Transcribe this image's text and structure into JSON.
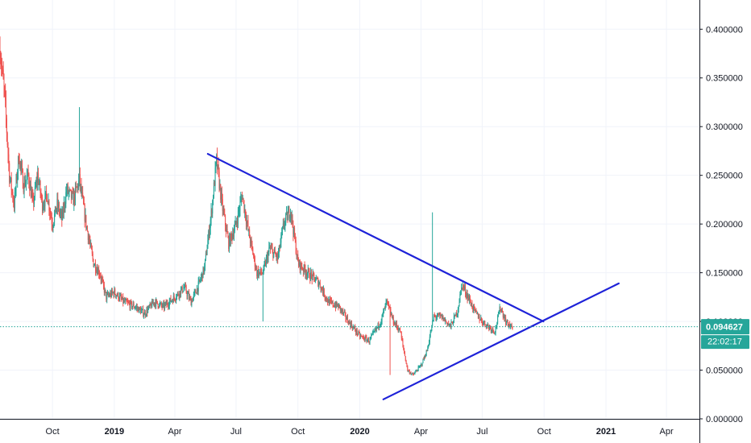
{
  "chart_data": {
    "type": "candlestick",
    "title": "",
    "xlabel": "",
    "ylabel": "",
    "x_range": [
      "2018-07-15",
      "2021-05-20"
    ],
    "ylim": [
      0.0,
      0.43
    ],
    "grid": true,
    "x_tick_labels": [
      {
        "date": "2018-10-01",
        "label": "Oct"
      },
      {
        "date": "2019-01-01",
        "label": "2019"
      },
      {
        "date": "2019-04-01",
        "label": "Apr"
      },
      {
        "date": "2019-07-01",
        "label": "Jul"
      },
      {
        "date": "2019-10-01",
        "label": "Oct"
      },
      {
        "date": "2020-01-01",
        "label": "2020"
      },
      {
        "date": "2020-04-01",
        "label": "Apr"
      },
      {
        "date": "2020-07-01",
        "label": "Jul"
      },
      {
        "date": "2020-10-01",
        "label": "Oct"
      },
      {
        "date": "2021-01-01",
        "label": "2021"
      },
      {
        "date": "2021-04-01",
        "label": "Apr"
      }
    ],
    "y_tick_labels": [
      {
        "value": 0.0,
        "label": "0.000000"
      },
      {
        "value": 0.05,
        "label": "0.050000"
      },
      {
        "value": 0.1,
        "label": "0.100000"
      },
      {
        "value": 0.15,
        "label": "0.150000"
      },
      {
        "value": 0.2,
        "label": "0.200000"
      },
      {
        "value": 0.25,
        "label": "0.250000"
      },
      {
        "value": 0.3,
        "label": "0.300000"
      },
      {
        "value": 0.35,
        "label": "0.350000"
      },
      {
        "value": 0.4,
        "label": "0.400000"
      }
    ],
    "price_path": [
      [
        "2018-07-15",
        0.38
      ],
      [
        "2018-07-22",
        0.33
      ],
      [
        "2018-07-29",
        0.25
      ],
      [
        "2018-08-05",
        0.22
      ],
      [
        "2018-08-12",
        0.27
      ],
      [
        "2018-08-19",
        0.24
      ],
      [
        "2018-08-26",
        0.25
      ],
      [
        "2018-09-02",
        0.22
      ],
      [
        "2018-09-09",
        0.25
      ],
      [
        "2018-09-16",
        0.22
      ],
      [
        "2018-09-23",
        0.23
      ],
      [
        "2018-10-01",
        0.2
      ],
      [
        "2018-10-08",
        0.22
      ],
      [
        "2018-10-15",
        0.205
      ],
      [
        "2018-10-22",
        0.235
      ],
      [
        "2018-11-01",
        0.225
      ],
      [
        "2018-11-10",
        0.245
      ],
      [
        "2018-11-20",
        0.2
      ],
      [
        "2018-12-01",
        0.16
      ],
      [
        "2018-12-10",
        0.15
      ],
      [
        "2018-12-20",
        0.125
      ],
      [
        "2019-01-01",
        0.13
      ],
      [
        "2019-01-15",
        0.12
      ],
      [
        "2019-02-01",
        0.115
      ],
      [
        "2019-02-15",
        0.108
      ],
      [
        "2019-03-01",
        0.12
      ],
      [
        "2019-03-15",
        0.115
      ],
      [
        "2019-04-01",
        0.125
      ],
      [
        "2019-04-15",
        0.135
      ],
      [
        "2019-04-25",
        0.12
      ],
      [
        "2019-05-05",
        0.135
      ],
      [
        "2019-05-15",
        0.155
      ],
      [
        "2019-05-25",
        0.21
      ],
      [
        "2019-06-02",
        0.265
      ],
      [
        "2019-06-10",
        0.22
      ],
      [
        "2019-06-20",
        0.18
      ],
      [
        "2019-07-01",
        0.2
      ],
      [
        "2019-07-10",
        0.23
      ],
      [
        "2019-07-20",
        0.19
      ],
      [
        "2019-08-01",
        0.15
      ],
      [
        "2019-08-10",
        0.15
      ],
      [
        "2019-08-20",
        0.175
      ],
      [
        "2019-09-01",
        0.165
      ],
      [
        "2019-09-10",
        0.2
      ],
      [
        "2019-09-20",
        0.215
      ],
      [
        "2019-10-01",
        0.16
      ],
      [
        "2019-10-15",
        0.15
      ],
      [
        "2019-11-01",
        0.14
      ],
      [
        "2019-11-15",
        0.12
      ],
      [
        "2019-12-01",
        0.115
      ],
      [
        "2019-12-15",
        0.1
      ],
      [
        "2020-01-01",
        0.085
      ],
      [
        "2020-01-15",
        0.08
      ],
      [
        "2020-02-01",
        0.1
      ],
      [
        "2020-02-10",
        0.12
      ],
      [
        "2020-02-20",
        0.1
      ],
      [
        "2020-03-01",
        0.09
      ],
      [
        "2020-03-12",
        0.05
      ],
      [
        "2020-03-20",
        0.045
      ],
      [
        "2020-04-01",
        0.055
      ],
      [
        "2020-04-10",
        0.07
      ],
      [
        "2020-04-20",
        0.105
      ],
      [
        "2020-05-01",
        0.105
      ],
      [
        "2020-05-15",
        0.095
      ],
      [
        "2020-05-25",
        0.11
      ],
      [
        "2020-06-01",
        0.138
      ],
      [
        "2020-06-10",
        0.125
      ],
      [
        "2020-06-20",
        0.11
      ],
      [
        "2020-07-01",
        0.1
      ],
      [
        "2020-07-10",
        0.095
      ],
      [
        "2020-07-20",
        0.09
      ],
      [
        "2020-07-28",
        0.115
      ],
      [
        "2020-08-05",
        0.1
      ],
      [
        "2020-08-15",
        0.093
      ]
    ],
    "spikes": [
      {
        "date": "2018-11-10",
        "high": 0.32
      },
      {
        "date": "2020-02-15",
        "low": 0.045
      },
      {
        "date": "2019-08-10",
        "low": 0.1
      },
      {
        "date": "2020-04-18",
        "high": 0.212
      }
    ],
    "trendlines": [
      {
        "name": "upper",
        "color": "#1e22d8",
        "start": [
          "2019-05-20",
          0.272
        ],
        "end": [
          "2020-09-30",
          0.1
        ]
      },
      {
        "name": "lower",
        "color": "#1e22d8",
        "start": [
          "2020-02-05",
          0.02
        ],
        "end": [
          "2021-01-20",
          0.139
        ]
      }
    ],
    "current_price": {
      "value": 0.094627,
      "label": "0.094627",
      "timer": "22:02:17",
      "color": "#26a69a"
    },
    "colors": {
      "up": "#26a69a",
      "down": "#ef5350"
    }
  }
}
